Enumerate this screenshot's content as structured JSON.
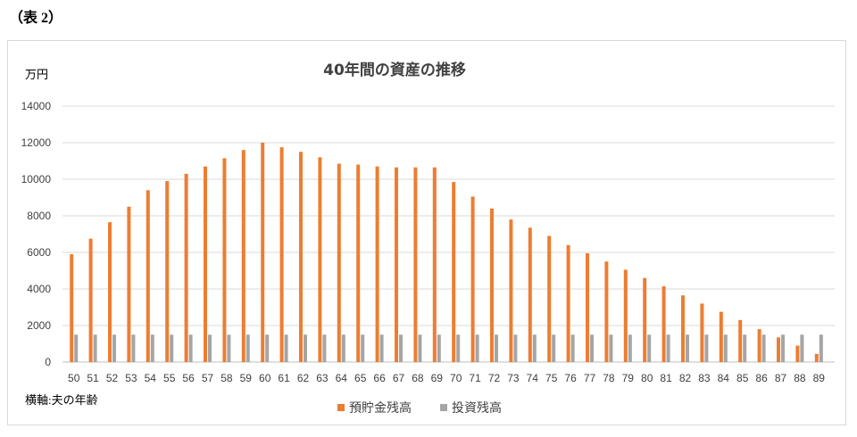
{
  "page": {
    "caption": "（表 2）"
  },
  "chart_data": {
    "type": "bar",
    "title": "40年間の資産の推移",
    "ylabel": "万円",
    "xlabel": "横軸:夫の年齢",
    "ylim": [
      0,
      14000
    ],
    "yticks": [
      0,
      2000,
      4000,
      6000,
      8000,
      10000,
      12000,
      14000
    ],
    "grid": true,
    "legend": "bottom",
    "categories": [
      "50",
      "51",
      "52",
      "53",
      "54",
      "55",
      "56",
      "57",
      "58",
      "59",
      "60",
      "61",
      "62",
      "63",
      "64",
      "65",
      "66",
      "67",
      "68",
      "69",
      "70",
      "71",
      "72",
      "73",
      "74",
      "75",
      "76",
      "77",
      "78",
      "79",
      "80",
      "81",
      "82",
      "83",
      "84",
      "85",
      "86",
      "87",
      "88",
      "89"
    ],
    "series": [
      {
        "name": "預貯金残高",
        "color": "#ED7D31",
        "values": [
          5900,
          6750,
          7650,
          8500,
          9400,
          9900,
          10300,
          10700,
          11150,
          11600,
          12000,
          11750,
          11500,
          11200,
          10850,
          10800,
          10700,
          10650,
          10650,
          10650,
          9850,
          9050,
          8400,
          7800,
          7350,
          6900,
          6400,
          5950,
          5500,
          5050,
          4600,
          4150,
          3650,
          3200,
          2750,
          2300,
          1800,
          1350,
          900,
          450
        ]
      },
      {
        "name": "投資残高",
        "color": "#A5A5A5",
        "values": [
          1500,
          1500,
          1500,
          1500,
          1500,
          1500,
          1500,
          1500,
          1500,
          1500,
          1500,
          1500,
          1500,
          1500,
          1500,
          1500,
          1500,
          1500,
          1500,
          1500,
          1500,
          1500,
          1500,
          1500,
          1500,
          1500,
          1500,
          1500,
          1500,
          1500,
          1500,
          1500,
          1500,
          1500,
          1500,
          1500,
          1500,
          1500,
          1500,
          1500
        ]
      }
    ]
  }
}
